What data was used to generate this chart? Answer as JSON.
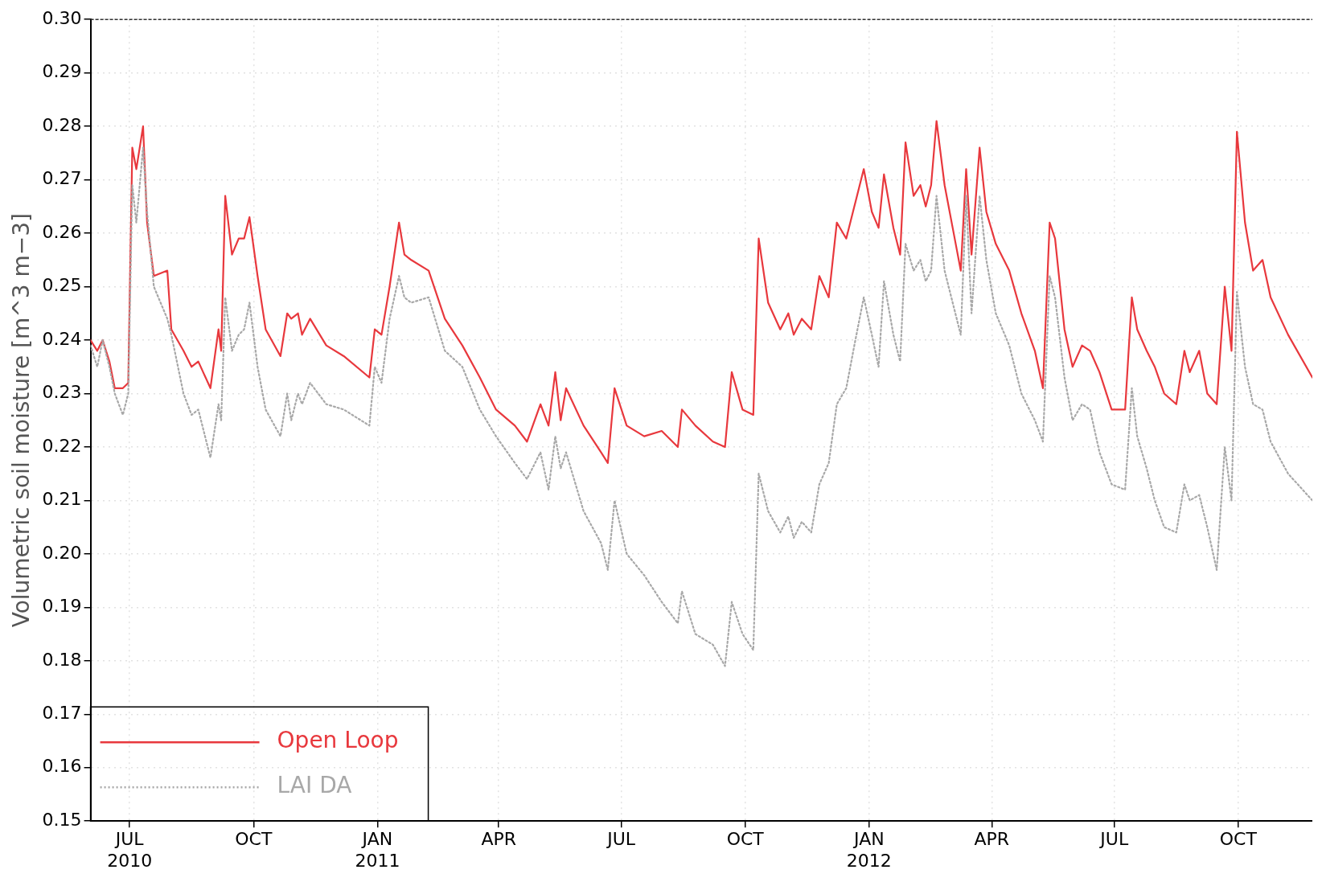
{
  "chart_data": {
    "type": "line",
    "ylabel": "Volumetric soil moisture [m^3 m−3]",
    "x": [
      "2010-06-02",
      "2010-06-07",
      "2010-06-11",
      "2010-06-16",
      "2010-06-20",
      "2010-06-26",
      "2010-06-30",
      "2010-07-03",
      "2010-07-06",
      "2010-07-11",
      "2010-07-14",
      "2010-07-19",
      "2010-07-29",
      "2010-08-01",
      "2010-08-10",
      "2010-08-16",
      "2010-08-21",
      "2010-08-30",
      "2010-09-05",
      "2010-09-07",
      "2010-09-10",
      "2010-09-15",
      "2010-09-20",
      "2010-09-24",
      "2010-09-28",
      "2010-10-04",
      "2010-10-10",
      "2010-10-21",
      "2010-10-26",
      "2010-10-29",
      "2010-11-03",
      "2010-11-06",
      "2010-11-12",
      "2010-11-24",
      "2010-12-07",
      "2010-12-26",
      "2010-12-30",
      "2011-01-04",
      "2011-01-10",
      "2011-01-17",
      "2011-01-21",
      "2011-01-26",
      "2011-02-08",
      "2011-02-20",
      "2011-03-05",
      "2011-03-18",
      "2011-03-30",
      "2011-04-13",
      "2011-04-22",
      "2011-05-02",
      "2011-05-08",
      "2011-05-13",
      "2011-05-17",
      "2011-05-21",
      "2011-06-03",
      "2011-06-16",
      "2011-06-21",
      "2011-06-26",
      "2011-07-05",
      "2011-07-18",
      "2011-07-31",
      "2011-08-12",
      "2011-08-15",
      "2011-08-25",
      "2011-09-07",
      "2011-09-16",
      "2011-09-21",
      "2011-09-29",
      "2011-10-07",
      "2011-10-11",
      "2011-10-18",
      "2011-10-27",
      "2011-11-02",
      "2011-11-06",
      "2011-11-12",
      "2011-11-19",
      "2011-11-25",
      "2011-12-02",
      "2011-12-08",
      "2011-12-15",
      "2011-12-21",
      "2011-12-28",
      "2012-01-03",
      "2012-01-08",
      "2012-01-12",
      "2012-01-19",
      "2012-01-24",
      "2012-01-28",
      "2012-02-03",
      "2012-02-08",
      "2012-02-12",
      "2012-02-16",
      "2012-02-20",
      "2012-02-26",
      "2012-03-03",
      "2012-03-09",
      "2012-03-13",
      "2012-03-17",
      "2012-03-23",
      "2012-03-28",
      "2012-04-04",
      "2012-04-14",
      "2012-04-23",
      "2012-05-03",
      "2012-05-09",
      "2012-05-14",
      "2012-05-18",
      "2012-05-25",
      "2012-05-31",
      "2012-06-07",
      "2012-06-13",
      "2012-06-20",
      "2012-06-29",
      "2012-07-09",
      "2012-07-14",
      "2012-07-18",
      "2012-07-25",
      "2012-07-31",
      "2012-08-07",
      "2012-08-16",
      "2012-08-22",
      "2012-08-26",
      "2012-09-02",
      "2012-09-08",
      "2012-09-15",
      "2012-09-21",
      "2012-09-26",
      "2012-09-30",
      "2012-10-06",
      "2012-10-12",
      "2012-10-19",
      "2012-10-25",
      "2012-11-07",
      "2012-11-25"
    ],
    "series": [
      {
        "name": "Open Loop",
        "color": "#e8383d",
        "line_style": "solid",
        "values": [
          0.24,
          0.238,
          0.24,
          0.236,
          0.231,
          0.231,
          0.232,
          0.276,
          0.272,
          0.28,
          0.262,
          0.252,
          0.253,
          0.242,
          0.238,
          0.235,
          0.236,
          0.231,
          0.242,
          0.238,
          0.267,
          0.256,
          0.259,
          0.259,
          0.263,
          0.252,
          0.242,
          0.237,
          0.245,
          0.244,
          0.245,
          0.241,
          0.244,
          0.239,
          0.237,
          0.233,
          0.242,
          0.241,
          0.25,
          0.262,
          0.256,
          0.255,
          0.253,
          0.244,
          0.239,
          0.233,
          0.227,
          0.224,
          0.221,
          0.228,
          0.224,
          0.234,
          0.225,
          0.231,
          0.224,
          0.219,
          0.217,
          0.231,
          0.224,
          0.222,
          0.223,
          0.22,
          0.227,
          0.224,
          0.221,
          0.22,
          0.234,
          0.227,
          0.226,
          0.259,
          0.247,
          0.242,
          0.245,
          0.241,
          0.244,
          0.242,
          0.252,
          0.248,
          0.262,
          0.259,
          0.265,
          0.272,
          0.264,
          0.261,
          0.271,
          0.261,
          0.256,
          0.277,
          0.267,
          0.269,
          0.265,
          0.269,
          0.281,
          0.269,
          0.261,
          0.253,
          0.272,
          0.256,
          0.276,
          0.264,
          0.258,
          0.253,
          0.245,
          0.238,
          0.231,
          0.262,
          0.259,
          0.242,
          0.235,
          0.239,
          0.238,
          0.234,
          0.227,
          0.227,
          0.248,
          0.242,
          0.238,
          0.235,
          0.23,
          0.228,
          0.238,
          0.234,
          0.238,
          0.23,
          0.228,
          0.25,
          0.238,
          0.279,
          0.262,
          0.253,
          0.255,
          0.248,
          0.241,
          0.233
        ]
      },
      {
        "name": "LAI DA",
        "color": "#a8a8a8",
        "line_style": "dotted",
        "values": [
          0.239,
          0.235,
          0.24,
          0.235,
          0.23,
          0.226,
          0.23,
          0.269,
          0.262,
          0.276,
          0.264,
          0.25,
          0.244,
          0.241,
          0.23,
          0.226,
          0.227,
          0.218,
          0.228,
          0.225,
          0.248,
          0.238,
          0.241,
          0.242,
          0.247,
          0.235,
          0.227,
          0.222,
          0.23,
          0.225,
          0.23,
          0.228,
          0.232,
          0.228,
          0.227,
          0.224,
          0.235,
          0.232,
          0.244,
          0.252,
          0.248,
          0.247,
          0.248,
          0.238,
          0.235,
          0.227,
          0.222,
          0.217,
          0.214,
          0.219,
          0.212,
          0.222,
          0.216,
          0.219,
          0.208,
          0.202,
          0.197,
          0.21,
          0.2,
          0.196,
          0.191,
          0.187,
          0.193,
          0.185,
          0.183,
          0.179,
          0.191,
          0.185,
          0.182,
          0.215,
          0.208,
          0.204,
          0.207,
          0.203,
          0.206,
          0.204,
          0.213,
          0.217,
          0.228,
          0.231,
          0.239,
          0.248,
          0.241,
          0.235,
          0.251,
          0.241,
          0.236,
          0.258,
          0.253,
          0.255,
          0.251,
          0.253,
          0.267,
          0.253,
          0.247,
          0.241,
          0.267,
          0.245,
          0.267,
          0.255,
          0.245,
          0.239,
          0.23,
          0.225,
          0.221,
          0.252,
          0.248,
          0.233,
          0.225,
          0.228,
          0.227,
          0.219,
          0.213,
          0.212,
          0.231,
          0.222,
          0.216,
          0.21,
          0.205,
          0.204,
          0.213,
          0.21,
          0.211,
          0.205,
          0.197,
          0.22,
          0.21,
          0.249,
          0.235,
          0.228,
          0.227,
          0.221,
          0.215,
          0.21
        ]
      }
    ],
    "xlim": [
      "2010-06-02",
      "2012-11-25"
    ],
    "xticks": [
      {
        "value": "2010-07-01",
        "label": "JUL 2010"
      },
      {
        "value": "2010-10-01",
        "label": "OCT"
      },
      {
        "value": "2011-01-01",
        "label": "JAN 2011"
      },
      {
        "value": "2011-04-01",
        "label": "APR"
      },
      {
        "value": "2011-07-01",
        "label": "JUL"
      },
      {
        "value": "2011-10-01",
        "label": "OCT"
      },
      {
        "value": "2012-01-01",
        "label": "JAN 2012"
      },
      {
        "value": "2012-04-01",
        "label": "APR"
      },
      {
        "value": "2012-07-01",
        "label": "JUL"
      },
      {
        "value": "2012-10-01",
        "label": "OCT"
      }
    ],
    "ylim": [
      0.15,
      0.3
    ],
    "yticks": [
      {
        "value": 0.15,
        "label": "0.15"
      },
      {
        "value": 0.16,
        "label": "0.16"
      },
      {
        "value": 0.17,
        "label": "0.17"
      },
      {
        "value": 0.18,
        "label": "0.18"
      },
      {
        "value": 0.19,
        "label": "0.19"
      },
      {
        "value": 0.2,
        "label": "0.20"
      },
      {
        "value": 0.21,
        "label": "0.21"
      },
      {
        "value": 0.22,
        "label": "0.22"
      },
      {
        "value": 0.23,
        "label": "0.23"
      },
      {
        "value": 0.24,
        "label": "0.24"
      },
      {
        "value": 0.25,
        "label": "0.25"
      },
      {
        "value": 0.26,
        "label": "0.26"
      },
      {
        "value": 0.27,
        "label": "0.27"
      },
      {
        "value": 0.28,
        "label": "0.28"
      },
      {
        "value": 0.29,
        "label": "0.29"
      },
      {
        "value": 0.3,
        "label": "0.30"
      }
    ],
    "grid": true,
    "legend": "bottom left",
    "marker": "none"
  }
}
